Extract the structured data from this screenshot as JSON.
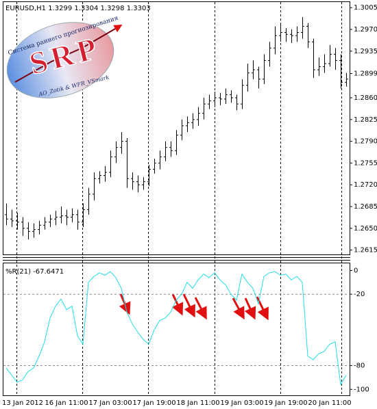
{
  "chart_data": [
    {
      "type": "ohlc",
      "title": "EURUSD,H1  1.3299 1.3304 1.3298 1.3303",
      "color": "#000000",
      "open": [
        1.2672,
        1.2665,
        1.2662,
        1.266,
        1.265,
        1.2645,
        1.2648,
        1.2655,
        1.266,
        1.2665,
        1.2668,
        1.267,
        1.2668,
        1.2672,
        1.266,
        1.268,
        1.2705,
        1.273,
        1.2735,
        1.274,
        1.2765,
        1.278,
        1.279,
        1.273,
        1.2725,
        1.272,
        1.2725,
        1.2745,
        1.2755,
        1.2765,
        1.278,
        1.2775,
        1.28,
        1.2815,
        1.282,
        1.2825,
        1.2835,
        1.285,
        1.2855,
        1.286,
        1.2858,
        1.2865,
        1.286,
        1.285,
        1.288,
        1.29,
        1.2905,
        1.289,
        1.292,
        1.294,
        1.296,
        1.2965,
        1.2962,
        1.296,
        1.2965,
        1.2975,
        1.295,
        1.2905,
        1.291,
        1.2915,
        1.293,
        1.292,
        1.2885
      ],
      "high": [
        1.269,
        1.268,
        1.2675,
        1.2668,
        1.266,
        1.2658,
        1.2662,
        1.2668,
        1.2672,
        1.2678,
        1.2685,
        1.268,
        1.2682,
        1.268,
        1.269,
        1.2715,
        1.274,
        1.2742,
        1.275,
        1.2775,
        1.279,
        1.2805,
        1.2795,
        1.274,
        1.2735,
        1.2732,
        1.2752,
        1.2762,
        1.2775,
        1.279,
        1.279,
        1.2808,
        1.2825,
        1.283,
        1.2835,
        1.2845,
        1.286,
        1.2865,
        1.287,
        1.2868,
        1.2875,
        1.2872,
        1.2865,
        1.289,
        1.2915,
        1.292,
        1.291,
        1.293,
        1.295,
        1.2975,
        1.2978,
        1.2972,
        1.297,
        1.2975,
        1.299,
        1.298,
        1.2955,
        1.2925,
        1.293,
        1.2945,
        1.294,
        1.293,
        1.29
      ],
      "low": [
        1.2655,
        1.2652,
        1.2648,
        1.2638,
        1.2632,
        1.2635,
        1.264,
        1.2648,
        1.2652,
        1.2655,
        1.2658,
        1.2655,
        1.266,
        1.2648,
        1.2652,
        1.2672,
        1.2695,
        1.2722,
        1.2725,
        1.2732,
        1.2755,
        1.277,
        1.2715,
        1.2712,
        1.2708,
        1.2712,
        1.2718,
        1.2738,
        1.2745,
        1.2758,
        1.2765,
        1.2768,
        1.2792,
        1.2805,
        1.281,
        1.2815,
        1.2825,
        1.2842,
        1.2845,
        1.2848,
        1.285,
        1.2852,
        1.284,
        1.2842,
        1.287,
        1.289,
        1.2875,
        1.2882,
        1.291,
        1.293,
        1.295,
        1.295,
        1.2948,
        1.295,
        1.2955,
        1.294,
        1.2892,
        1.2895,
        1.29,
        1.291,
        1.2905,
        1.2875,
        1.2878
      ],
      "close": [
        1.2665,
        1.2662,
        1.266,
        1.265,
        1.2645,
        1.2648,
        1.2655,
        1.266,
        1.2665,
        1.2668,
        1.267,
        1.2668,
        1.2672,
        1.266,
        1.268,
        1.2705,
        1.273,
        1.2735,
        1.274,
        1.2765,
        1.278,
        1.279,
        1.273,
        1.2725,
        1.272,
        1.2725,
        1.2745,
        1.2755,
        1.2765,
        1.278,
        1.2775,
        1.28,
        1.2815,
        1.282,
        1.2825,
        1.2835,
        1.285,
        1.2855,
        1.286,
        1.2858,
        1.2865,
        1.286,
        1.285,
        1.288,
        1.29,
        1.2905,
        1.289,
        1.292,
        1.294,
        1.296,
        1.2965,
        1.2962,
        1.296,
        1.2965,
        1.2975,
        1.295,
        1.2905,
        1.291,
        1.2915,
        1.293,
        1.292,
        1.2885,
        1.289
      ],
      "ylim": [
        1.2608,
        1.3014
      ],
      "yticks": [
        1.3005,
        {
          "value": 1.297,
          "label": "1.2970"
        },
        1.2935,
        1.2899,
        {
          "value": 1.286,
          "label": "1.2860"
        },
        1.2825,
        {
          "value": 1.279,
          "label": "1.2790"
        },
        1.2755,
        {
          "value": 1.272,
          "label": "1.2720"
        },
        1.2685,
        {
          "value": 1.265,
          "label": "1.2650"
        },
        1.2615
      ]
    },
    {
      "type": "line",
      "title": "%R(21) -67.6471",
      "color": "#22dde8",
      "categories": [
        null,
        null,
        null,
        "13 Jan 2012",
        null,
        null,
        null,
        null,
        null,
        null,
        null,
        "16 Jan 11:00",
        null,
        null,
        null,
        null,
        null,
        null,
        null,
        "17 Jan 03:00",
        null,
        null,
        null,
        null,
        null,
        null,
        null,
        "17 Jan 19:00",
        null,
        null,
        null,
        null,
        null,
        null,
        null,
        "18 Jan 11:00",
        null,
        null,
        null,
        null,
        null,
        null,
        null,
        "19 Jan 03:00",
        null,
        null,
        null,
        null,
        null,
        null,
        null,
        "19 Jan 19:00",
        null,
        null,
        null,
        null,
        null,
        null,
        null,
        "20 Jan 11:00",
        null,
        null,
        null
      ],
      "values": [
        -82,
        -88,
        -94,
        -92,
        -85,
        -82,
        -72,
        -60,
        -40,
        -30,
        -24,
        -33,
        -30,
        -55,
        -62,
        -10,
        -5,
        -2,
        -4,
        -1,
        -6,
        -15,
        -35,
        -45,
        -52,
        -58,
        -62,
        -50,
        -42,
        -40,
        -35,
        -25,
        -20,
        -10,
        -15,
        -8,
        -3,
        -6,
        -2,
        -8,
        -12,
        -20,
        -25,
        -3,
        -10,
        -15,
        -28,
        -5,
        -2,
        -1,
        -4,
        -3,
        -8,
        -5,
        -10,
        -72,
        -75,
        -70,
        -68,
        -62,
        -60,
        -96,
        -88
      ],
      "ylim": [
        -105,
        6
      ],
      "yticks": [
        0,
        -20,
        -80,
        -100
      ],
      "levels": [
        -20,
        -80
      ]
    }
  ],
  "logo": {
    "caption": "Система раннего прогнозирования",
    "letters": "SRP",
    "authors": "AO_Zotik & WFR_VSmark"
  }
}
